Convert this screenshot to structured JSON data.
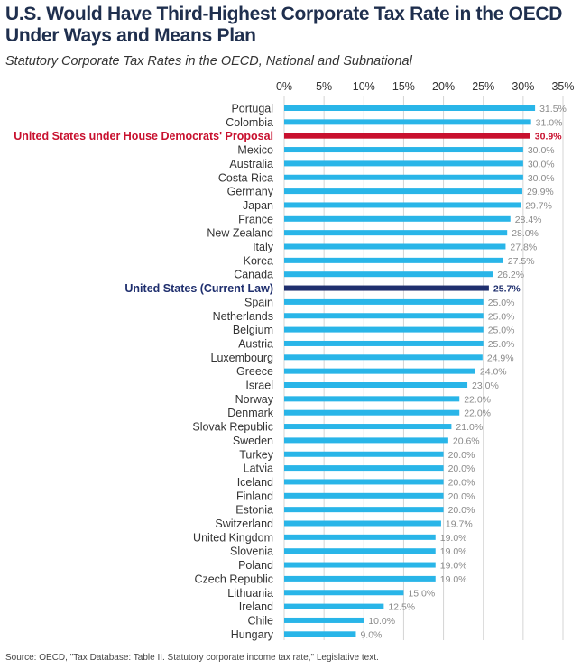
{
  "title": "U.S. Would Have Third-Highest Corporate Tax Rate in the OECD Under Ways and Means Plan",
  "subtitle": "Statutory Corporate Tax Rates in the OECD, National and Subnational",
  "source": "Source: OECD, \"Tax Database: Table II. Statutory corporate income tax rate,\" Legislative text.",
  "colors": {
    "bar": "#29b5e8",
    "highlight_proposal": "#c8102e",
    "highlight_current": "#1f2f6e",
    "label": "#333333",
    "value_label": "#8a8a8a",
    "grid": "#d4d4d4"
  },
  "chart_data": {
    "type": "bar",
    "orientation": "horizontal",
    "xlim": [
      0,
      35
    ],
    "x_ticks": [
      "0%",
      "5%",
      "10%",
      "15%",
      "20%",
      "25%",
      "30%",
      "35%"
    ],
    "x_tick_values": [
      0,
      5,
      10,
      15,
      20,
      25,
      30,
      35
    ],
    "grid": true,
    "categories": [
      "Portugal",
      "Colombia",
      "United States under House Democrats' Proposal",
      "Mexico",
      "Australia",
      "Costa Rica",
      "Germany",
      "Japan",
      "France",
      "New Zealand",
      "Italy",
      "Korea",
      "Canada",
      "United States (Current Law)",
      "Spain",
      "Netherlands",
      "Belgium",
      "Austria",
      "Luxembourg",
      "Greece",
      "Israel",
      "Norway",
      "Denmark",
      "Slovak Republic",
      "Sweden",
      "Turkey",
      "Latvia",
      "Iceland",
      "Finland",
      "Estonia",
      "Switzerland",
      "United Kingdom",
      "Slovenia",
      "Poland",
      "Czech Republic",
      "Lithuania",
      "Ireland",
      "Chile",
      "Hungary"
    ],
    "values": [
      31.5,
      31.0,
      30.9,
      30.0,
      30.0,
      30.0,
      29.9,
      29.7,
      28.4,
      28.0,
      27.8,
      27.5,
      26.2,
      25.7,
      25.0,
      25.0,
      25.0,
      25.0,
      24.9,
      24.0,
      23.0,
      22.0,
      22.0,
      21.0,
      20.6,
      20.0,
      20.0,
      20.0,
      20.0,
      20.0,
      19.7,
      19.0,
      19.0,
      19.0,
      19.0,
      15.0,
      12.5,
      10.0,
      9.0
    ],
    "value_labels": [
      "31.5%",
      "31.0%",
      "30.9%",
      "30.0%",
      "30.0%",
      "30.0%",
      "29.9%",
      "29.7%",
      "28.4%",
      "28.0%",
      "27.8%",
      "27.5%",
      "26.2%",
      "25.7%",
      "25.0%",
      "25.0%",
      "25.0%",
      "25.0%",
      "24.9%",
      "24.0%",
      "23.0%",
      "22.0%",
      "22.0%",
      "21.0%",
      "20.6%",
      "20.0%",
      "20.0%",
      "20.0%",
      "20.0%",
      "20.0%",
      "19.7%",
      "19.0%",
      "19.0%",
      "19.0%",
      "19.0%",
      "15.0%",
      "12.5%",
      "10.0%",
      "9.0%"
    ],
    "highlights": {
      "United States under House Democrats' Proposal": "proposal",
      "United States (Current Law)": "current"
    }
  }
}
